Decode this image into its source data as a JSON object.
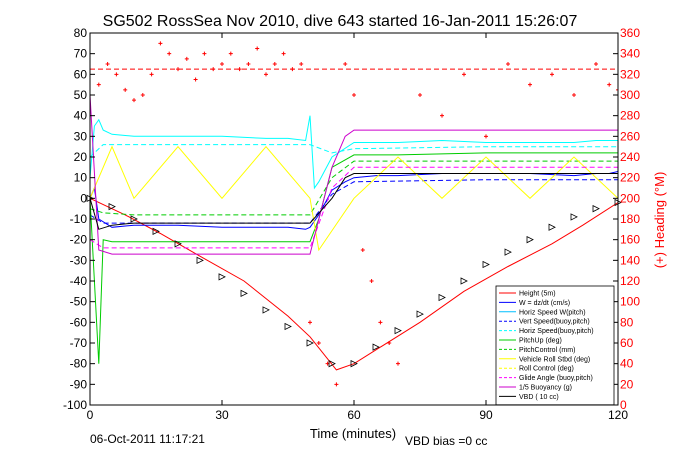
{
  "title": "SG502 RossSea Nov 2010, dive 643 started 16-Jan-2011 15:26:07",
  "footer": {
    "date": "06-Oct-2011 11:17:21",
    "vbd_bias": "VBD bias =0 cc"
  },
  "chart_data": {
    "type": "line",
    "xlabel": "Time (minutes)",
    "ylabel_right": "(+) Heading (°M)",
    "xlim": [
      0,
      120
    ],
    "ylim": [
      -100,
      80
    ],
    "ylim_right": [
      0,
      360
    ],
    "x_ticks": [
      "0",
      "30",
      "60",
      "90",
      "120"
    ],
    "y_ticks": [
      "80",
      "70",
      "60",
      "50",
      "40",
      "30",
      "20",
      "10",
      "0",
      "-10",
      "-20",
      "-30",
      "-40",
      "-50",
      "-60",
      "-70",
      "-80",
      "-90",
      "-100"
    ],
    "y_ticks_right": [
      "360",
      "340",
      "320",
      "300",
      "280",
      "260",
      "240",
      "220",
      "200",
      "180",
      "160",
      "140",
      "120",
      "100",
      "80",
      "60",
      "40",
      "20",
      "0"
    ],
    "grid": false,
    "legend_position": "bottom-right",
    "colors": {
      "height": "#ff0000",
      "w": "#0000ff",
      "horiz_speed": "#00ffff",
      "pitch": "#00cc00",
      "roll": "#ffff00",
      "glide": "#ff00ff",
      "vbd": "#000000",
      "heading": "#ff0000",
      "axis": "#000000"
    },
    "legend": [
      {
        "label": "Height (5m)",
        "color": "#ff0000",
        "dash": false
      },
      {
        "label": "W = dz/dt (cm/s)",
        "color": "#0000ff",
        "dash": false
      },
      {
        "label": "Horiz Speed W(pitch)",
        "color": "#00bfff",
        "dash": false
      },
      {
        "label": "Vert Speed(buoy,pitch)",
        "color": "#0000ff",
        "dash": true
      },
      {
        "label": "Horiz Speed(buoy,pitch)",
        "color": "#00ffff",
        "dash": true
      },
      {
        "label": "PitchUp (deg)",
        "color": "#00cc00",
        "dash": false
      },
      {
        "label": "PitchControl (mm)",
        "color": "#00cc00",
        "dash": true
      },
      {
        "label": "Vehicle Roll Stbd (deg)",
        "color": "#ffff00",
        "dash": false
      },
      {
        "label": "Roll Control (deg)",
        "color": "#ffff00",
        "dash": true
      },
      {
        "label": "Glide Angle (buoy,pitch)",
        "color": "#ff00ff",
        "dash": true
      },
      {
        "label": "1/5 Buoyancy (g)",
        "color": "#cc00cc",
        "dash": false
      },
      {
        "label": "VBD ( 10 cc)",
        "color": "#000000",
        "dash": false
      }
    ],
    "series": [
      {
        "key": "height",
        "color": "#ff0000",
        "dash": false,
        "x": [
          0,
          8,
          16,
          25,
          35,
          45,
          50,
          56,
          60,
          66,
          75,
          85,
          95,
          105,
          112,
          120
        ],
        "y": [
          0,
          -8,
          -17,
          -28,
          -40,
          -57,
          -67,
          -83,
          -80,
          -72,
          -60,
          -45,
          -33,
          -22,
          -13,
          -2
        ]
      },
      {
        "key": "w",
        "color": "#0000ff",
        "dash": false,
        "x": [
          0,
          1,
          2,
          5,
          10,
          20,
          30,
          40,
          45,
          49,
          50,
          52,
          55,
          58,
          60,
          65,
          70,
          80,
          90,
          100,
          110,
          115,
          118,
          120
        ],
        "y": [
          0,
          5,
          -10,
          -14,
          -13,
          -13,
          -14,
          -14,
          -14,
          -15,
          -14,
          -8,
          4,
          8,
          10,
          11,
          11,
          12,
          12,
          12,
          11,
          12,
          12,
          13
        ]
      },
      {
        "key": "vert_speed_dash",
        "color": "#0000ff",
        "dash": true,
        "x": [
          0,
          3,
          10,
          30,
          50,
          55,
          60,
          90,
          120
        ],
        "y": [
          -8,
          -12,
          -12,
          -12,
          -12,
          2,
          8,
          9,
          9
        ]
      },
      {
        "key": "horiz_speed_pitch",
        "color": "#00ffff",
        "dash": false,
        "x": [
          0,
          1,
          2,
          3,
          5,
          10,
          20,
          30,
          40,
          45,
          49,
          50,
          51,
          52,
          55,
          60,
          70,
          80,
          90,
          100,
          110,
          115,
          120
        ],
        "y": [
          10,
          35,
          38,
          33,
          31,
          30,
          30,
          30,
          29,
          29,
          28,
          40,
          5,
          8,
          20,
          27,
          27,
          28,
          27,
          27,
          27,
          28,
          28
        ]
      },
      {
        "key": "horiz_speed_buoy",
        "color": "#00ffff",
        "dash": true,
        "x": [
          0,
          3,
          10,
          30,
          50,
          55,
          60,
          90,
          120
        ],
        "y": [
          20,
          26,
          26,
          26,
          26,
          22,
          24,
          25,
          25
        ]
      },
      {
        "key": "pitch_up",
        "color": "#00cc00",
        "dash": false,
        "x": [
          0,
          1,
          2,
          3,
          5,
          20,
          40,
          50,
          52,
          55,
          60,
          70,
          90,
          110,
          120
        ],
        "y": [
          0,
          -40,
          -80,
          -20,
          -21,
          -21,
          -21,
          -21,
          -10,
          15,
          21,
          21,
          22,
          22,
          22
        ]
      },
      {
        "key": "pitch_control",
        "color": "#00cc00",
        "dash": true,
        "x": [
          0,
          3,
          10,
          30,
          50,
          55,
          60,
          90,
          120
        ],
        "y": [
          -5,
          -7,
          -8,
          -8,
          -8,
          10,
          18,
          18,
          18
        ]
      },
      {
        "key": "roll",
        "color": "#ffff00",
        "dash": false,
        "x": [
          0,
          5,
          10,
          20,
          30,
          40,
          50,
          52,
          60,
          70,
          80,
          90,
          100,
          110,
          120
        ],
        "y": [
          0,
          25,
          0,
          25,
          0,
          25,
          0,
          -25,
          0,
          20,
          0,
          20,
          0,
          20,
          0
        ]
      },
      {
        "key": "glide_angle",
        "color": "#ff00ff",
        "dash": true,
        "x": [
          0,
          3,
          10,
          30,
          50,
          55,
          60,
          90,
          120
        ],
        "y": [
          -20,
          -24,
          -24,
          -24,
          -24,
          5,
          15,
          15,
          15
        ]
      },
      {
        "key": "buoyancy",
        "color": "#cc00cc",
        "dash": false,
        "x": [
          0,
          2,
          5,
          10,
          20,
          30,
          40,
          50,
          55,
          58,
          60,
          70,
          80,
          90,
          100,
          110,
          120
        ],
        "y": [
          50,
          -25,
          -27,
          -27,
          -27,
          -27,
          -27,
          -27,
          15,
          30,
          33,
          33,
          33,
          33,
          33,
          33,
          33
        ]
      },
      {
        "key": "vbd",
        "color": "#000000",
        "dash": false,
        "x": [
          0,
          2,
          5,
          10,
          20,
          30,
          40,
          50,
          55,
          58,
          60,
          70,
          90,
          120
        ],
        "y": [
          0,
          -15,
          -13,
          -12,
          -12,
          -12,
          -12,
          -12,
          0,
          10,
          12,
          12,
          12,
          12
        ]
      }
    ],
    "heading_points": {
      "color": "#ff0000",
      "x": [
        2,
        4,
        6,
        8,
        10,
        12,
        14,
        16,
        18,
        20,
        22,
        24,
        26,
        28,
        30,
        32,
        34,
        36,
        38,
        40,
        42,
        44,
        46,
        48,
        50,
        52,
        54,
        56,
        58,
        60,
        62,
        64,
        66,
        68,
        70,
        75,
        80,
        85,
        90,
        95,
        100,
        105,
        110,
        115,
        118,
        120
      ],
      "y": [
        310,
        330,
        320,
        305,
        295,
        300,
        320,
        350,
        340,
        325,
        335,
        315,
        340,
        325,
        330,
        340,
        325,
        330,
        345,
        320,
        330,
        340,
        325,
        330,
        80,
        60,
        40,
        20,
        330,
        300,
        150,
        120,
        80,
        60,
        40,
        300,
        280,
        320,
        260,
        330,
        310,
        320,
        300,
        330,
        310,
        305
      ]
    },
    "heading_reference": {
      "value": 325,
      "color": "#ff0000",
      "dash": true
    },
    "vbd_markers": {
      "x": [
        0,
        5,
        10,
        15,
        20,
        25,
        30,
        35,
        40,
        45,
        50,
        55,
        60,
        65,
        70,
        75,
        80,
        85,
        90,
        95,
        100,
        105,
        110,
        115,
        120
      ],
      "y": [
        0,
        -4,
        -10,
        -16,
        -22,
        -30,
        -38,
        -46,
        -54,
        -62,
        -70,
        -80,
        -80,
        -72,
        -64,
        -56,
        -48,
        -40,
        -32,
        -26,
        -20,
        -14,
        -9,
        -5,
        -2
      ]
    }
  }
}
